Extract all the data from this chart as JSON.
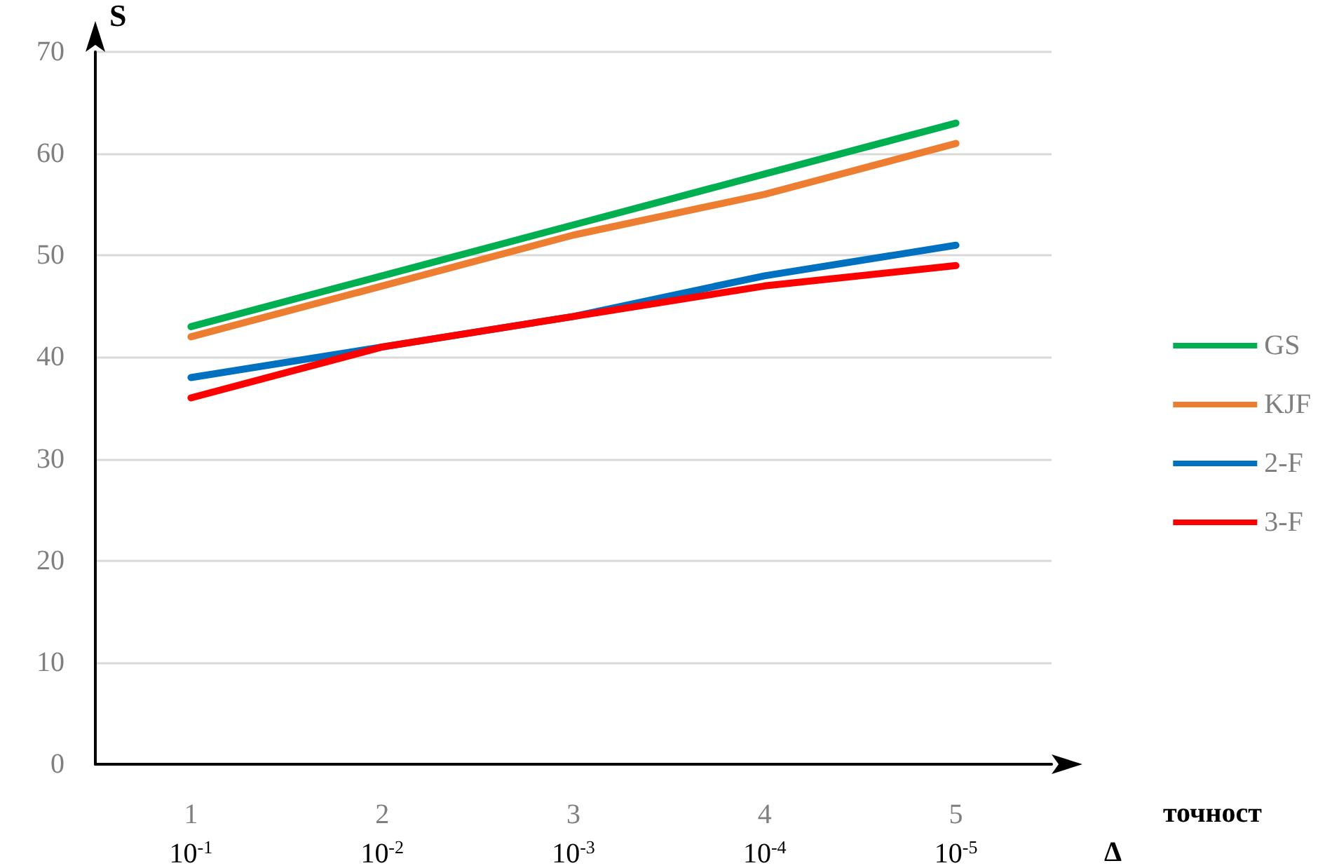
{
  "chart_data": {
    "type": "line",
    "categories": [
      "1\n10$^{-1}$",
      "2\n10$^{-2}$",
      "3\n10$^{-3}$",
      "4\n10$^{-4}$",
      "5\n10$^{-5}$"
    ],
    "xlabel": "точност\nΔ",
    "ylabel": "S",
    "series": [
      {
        "name": "GS",
        "color": "#00b050",
        "values": [
          43,
          48,
          53,
          58,
          63
        ]
      },
      {
        "name": "KJF",
        "color": "#ed7d31",
        "values": [
          42,
          47,
          52,
          56,
          61
        ]
      },
      {
        "name": "2-F",
        "color": "#0070c0",
        "values": [
          38,
          41,
          44,
          48,
          51
        ]
      },
      {
        "name": "3-F",
        "color": "#ff0000",
        "values": [
          36,
          41,
          44,
          47,
          49
        ]
      }
    ],
    "ylim": [
      0,
      70
    ],
    "yticks": [
      0,
      10,
      20,
      30,
      40,
      50,
      60,
      70
    ],
    "grid": "y",
    "legend": "right",
    "marker": "none",
    "line_style": "solid"
  }
}
